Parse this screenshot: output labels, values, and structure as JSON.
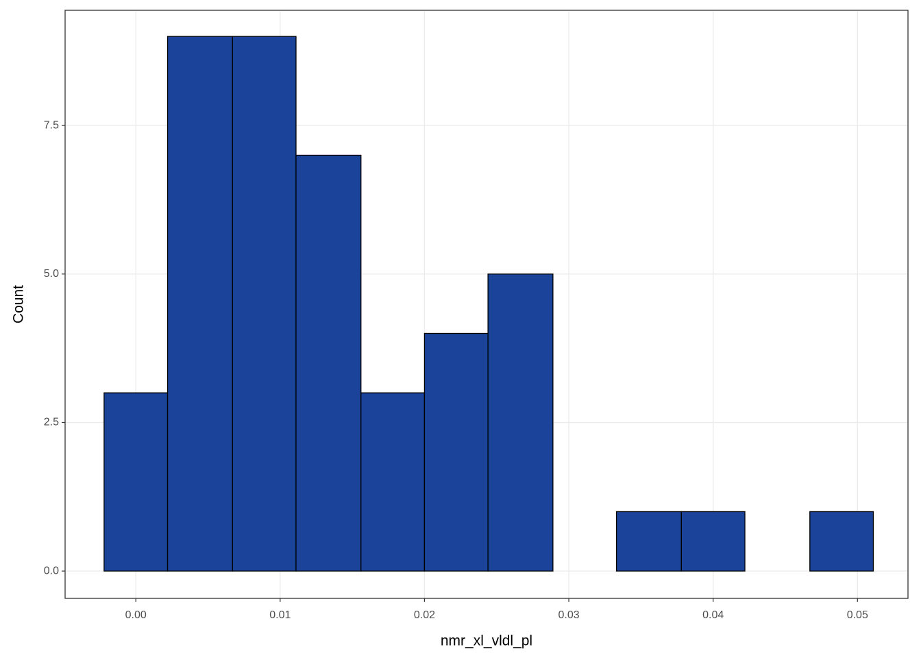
{
  "chart_data": {
    "type": "histogram",
    "x_label": "nmr_xl_vldl_pl",
    "y_label": "Count",
    "bins": [
      -0.0022,
      0.0022,
      0.0067,
      0.0111,
      0.0156,
      0.02,
      0.0244,
      0.0289,
      0.0333,
      0.0378,
      0.0422,
      0.0467,
      0.0511
    ],
    "values": [
      3,
      9,
      9,
      7,
      3,
      4,
      5,
      0,
      1,
      1,
      0,
      1
    ],
    "color": "#1a4399",
    "edge_color": "#000000",
    "xlim": [
      -0.0049,
      0.0535
    ],
    "ylim": [
      -0.46,
      9.44
    ],
    "xticks": [
      {
        "value": 0,
        "label": "0.00"
      },
      {
        "value": 0.01,
        "label": "0.01"
      },
      {
        "value": 0.02,
        "label": "0.02"
      },
      {
        "value": 0.03,
        "label": "0.03"
      },
      {
        "value": 0.04,
        "label": "0.04"
      },
      {
        "value": 0.05,
        "label": "0.05"
      }
    ],
    "yticks": [
      {
        "value": 0,
        "label": "0.0"
      },
      2.5,
      {
        "value": 5,
        "label": "5.0"
      },
      7.5
    ],
    "grid": true
  }
}
